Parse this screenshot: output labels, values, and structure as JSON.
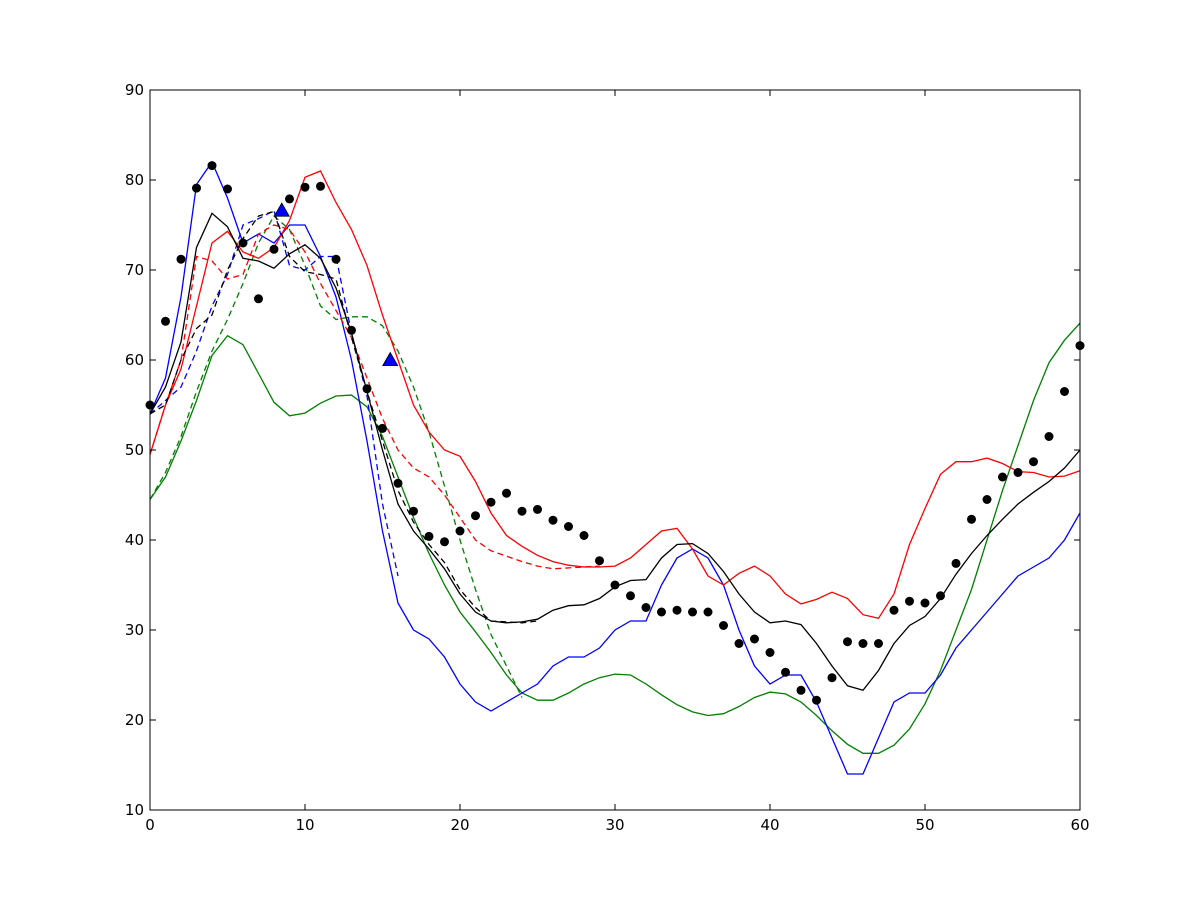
{
  "chart_data": {
    "type": "line",
    "title": "",
    "xlabel": "",
    "ylabel": "",
    "xlim": [
      0,
      60
    ],
    "ylim": [
      10,
      90
    ],
    "grid": false,
    "x_ticks": [
      "0",
      "10",
      "20",
      "30",
      "40",
      "50",
      "60"
    ],
    "y_ticks": [
      "10",
      "20",
      "30",
      "40",
      "50",
      "60",
      "70",
      "80",
      "90"
    ],
    "series": [
      {
        "name": "green-solid",
        "color": "#008000",
        "style": "solid",
        "x": [
          0,
          1,
          2,
          3,
          4,
          5,
          6,
          7,
          8,
          9,
          10,
          11,
          12,
          13,
          14,
          15,
          16,
          17,
          18,
          19,
          20,
          21,
          22,
          23,
          24,
          25,
          26,
          27,
          28,
          29,
          30,
          31,
          32,
          33,
          34,
          35,
          36,
          37,
          38,
          39,
          40,
          41,
          42,
          43,
          44,
          45,
          46,
          47,
          48,
          49,
          50,
          51,
          52,
          53,
          54,
          55,
          56,
          57,
          58,
          59,
          60
        ],
        "y": [
          44.5,
          47,
          51,
          55.5,
          60.5,
          62.7,
          61.7,
          58.5,
          55.3,
          53.8,
          54.1,
          55.2,
          56,
          56.1,
          54.8,
          51.5,
          47,
          42.5,
          38.5,
          35,
          32,
          29.8,
          27.5,
          25,
          23,
          22.2,
          22.2,
          23,
          24,
          24.7,
          25.1,
          25,
          24,
          22.8,
          21.7,
          20.9,
          20.5,
          20.7,
          21.5,
          22.5,
          23.1,
          22.9,
          22,
          20.5,
          18.8,
          17.3,
          16.3,
          16.3,
          17.2,
          19,
          21.8,
          25.5,
          30,
          34.5,
          40,
          45.5,
          50.5,
          55.5,
          59.7,
          62.2,
          64.1
        ]
      },
      {
        "name": "green-dashed",
        "color": "#008000",
        "style": "dashed",
        "x": [
          0,
          1,
          2,
          3,
          4,
          5,
          6,
          7,
          8,
          9,
          10,
          11,
          12,
          13,
          14,
          15,
          16,
          17,
          18,
          19,
          20,
          21,
          22,
          23,
          24
        ],
        "y": [
          44.5,
          47.5,
          51.5,
          56.5,
          61,
          64.5,
          68.5,
          73,
          76,
          74.5,
          70.5,
          66,
          64.5,
          64.8,
          64.8,
          63.8,
          61,
          57,
          52,
          46,
          40,
          34.5,
          29.5,
          26,
          22.5
        ]
      },
      {
        "name": "blue-solid",
        "color": "#0000ff",
        "style": "solid",
        "x": [
          0,
          1,
          2,
          3,
          4,
          5,
          6,
          7,
          8,
          9,
          10,
          11,
          12,
          13,
          14,
          15,
          16,
          17,
          18,
          19,
          20,
          21,
          22,
          23,
          24,
          25,
          26,
          27,
          28,
          29,
          30,
          31,
          32,
          33,
          34,
          35,
          36,
          37,
          38,
          39,
          40,
          41,
          42,
          43,
          44,
          45,
          46,
          47,
          48,
          49,
          50,
          51,
          52,
          53,
          54,
          55,
          56,
          57,
          58,
          59,
          60
        ],
        "y": [
          54,
          58,
          67,
          79.5,
          82,
          78,
          73,
          74,
          73,
          75,
          75,
          71.5,
          67,
          60,
          51,
          41,
          33,
          30,
          29,
          27,
          24,
          22,
          21,
          22,
          23,
          24,
          26,
          27,
          27,
          28,
          30,
          31,
          31,
          35,
          38,
          39,
          38,
          35,
          30,
          26,
          24,
          25,
          25,
          22,
          18,
          14,
          14,
          18,
          22,
          23,
          23,
          25,
          28,
          30,
          32,
          34,
          36,
          37,
          38,
          40,
          43
        ]
      },
      {
        "name": "blue-dashed",
        "color": "#0000ff",
        "style": "dashed",
        "x": [
          0,
          1,
          2,
          3,
          4,
          5,
          6,
          7,
          8,
          9,
          10,
          11,
          12,
          13,
          14,
          15,
          16
        ],
        "y": [
          54,
          55.5,
          57,
          61,
          66,
          69.5,
          75,
          75.7,
          76.6,
          70.5,
          70,
          71.5,
          71.5,
          63,
          56,
          44,
          36
        ]
      },
      {
        "name": "red-solid",
        "color": "#ff0000",
        "style": "solid",
        "x": [
          0,
          1,
          2,
          3,
          4,
          5,
          6,
          7,
          8,
          9,
          10,
          11,
          12,
          13,
          14,
          15,
          16,
          17,
          18,
          19,
          20,
          21,
          22,
          23,
          24,
          25,
          26,
          27,
          28,
          29,
          30,
          31,
          32,
          33,
          34,
          35,
          36,
          37,
          38,
          39,
          40,
          41,
          42,
          43,
          44,
          45,
          46,
          47,
          48,
          49,
          50,
          51,
          52,
          53,
          54,
          55,
          56,
          57,
          58,
          59,
          60
        ],
        "y": [
          49.5,
          55,
          59,
          66,
          73,
          74.3,
          72,
          71.3,
          72.5,
          75.5,
          80.3,
          81,
          77.5,
          74.5,
          70.5,
          65,
          60,
          55,
          52,
          50,
          49.3,
          46.5,
          43,
          40.5,
          39.3,
          38.3,
          37.6,
          37.2,
          37,
          37,
          37.1,
          38,
          39.5,
          41,
          41.3,
          39,
          36,
          35,
          36.3,
          37.1,
          36,
          34,
          32.9,
          33.4,
          34.2,
          33.5,
          31.7,
          31.3,
          34,
          39.5,
          43.5,
          47.3,
          48.7,
          48.7,
          49.1,
          48.5,
          47.6,
          47.5,
          47,
          47.1,
          47.7
        ]
      },
      {
        "name": "red-dashed",
        "color": "#ff0000",
        "style": "dashed",
        "x": [
          0,
          1,
          2,
          3,
          4,
          5,
          6,
          7,
          8,
          9,
          10,
          11,
          12,
          13,
          14,
          15,
          16,
          17,
          18,
          19,
          20,
          21,
          22,
          23,
          24,
          25,
          26,
          27,
          28,
          29
        ],
        "y": [
          49.5,
          55,
          60,
          71.5,
          71,
          69,
          69.5,
          74,
          75,
          74.5,
          72,
          68.5,
          65.5,
          62.5,
          58,
          53.5,
          50,
          48,
          47,
          45,
          42.5,
          40,
          38.8,
          38.2,
          37.6,
          37.1,
          36.8,
          36.9,
          37,
          37.1
        ]
      },
      {
        "name": "black-solid",
        "color": "#000000",
        "style": "solid",
        "x": [
          0,
          1,
          2,
          3,
          4,
          5,
          6,
          7,
          8,
          9,
          10,
          11,
          12,
          13,
          14,
          15,
          16,
          17,
          18,
          19,
          20,
          21,
          22,
          23,
          24,
          25,
          26,
          27,
          28,
          29,
          30,
          31,
          32,
          33,
          34,
          35,
          36,
          37,
          38,
          39,
          40,
          41,
          42,
          43,
          44,
          45,
          46,
          47,
          48,
          49,
          50,
          51,
          52,
          53,
          54,
          55,
          56,
          57,
          58,
          59,
          60
        ],
        "y": [
          54,
          57,
          62,
          72.5,
          76.3,
          74.8,
          71.3,
          71,
          70.2,
          71.8,
          72.8,
          71.3,
          68,
          63,
          56.5,
          50,
          44,
          41,
          39,
          36.8,
          34,
          32,
          31,
          30.8,
          30.9,
          31.2,
          32.2,
          32.7,
          32.8,
          33.5,
          34.8,
          35.5,
          35.6,
          38,
          39.5,
          39.6,
          38.5,
          36.5,
          34,
          32,
          30.8,
          31,
          30.6,
          28.5,
          26,
          23.8,
          23.3,
          25.5,
          28.5,
          30.5,
          31.5,
          33.5,
          36.2,
          38.5,
          40.5,
          42.3,
          44,
          45.3,
          46.5,
          48,
          50
        ]
      },
      {
        "name": "black-dashed",
        "color": "#000000",
        "style": "dashed",
        "x": [
          0,
          1,
          2,
          3,
          4,
          5,
          6,
          7,
          8,
          9,
          10,
          11,
          12,
          13,
          14,
          15,
          16,
          17,
          18,
          19,
          20,
          21,
          22,
          23,
          24,
          25
        ],
        "y": [
          54,
          55,
          60,
          63.5,
          65,
          70,
          73.5,
          76,
          76.5,
          71.5,
          69.8,
          69.5,
          69,
          62.5,
          56.5,
          51,
          45.5,
          42,
          39.5,
          37.5,
          34.5,
          32.5,
          31,
          30.9,
          30.8,
          31
        ]
      }
    ],
    "markers": [
      {
        "name": "black-dots",
        "color": "#000000",
        "shape": "circle",
        "x": [
          0,
          1,
          2,
          3,
          4,
          5,
          6,
          7,
          8,
          9,
          10,
          11,
          12,
          13,
          14,
          15,
          16,
          17,
          18,
          19,
          20,
          21,
          22,
          23,
          24,
          25,
          26,
          27,
          28,
          29,
          30,
          31,
          32,
          33,
          34,
          35,
          36,
          37,
          38,
          39,
          40,
          41,
          42,
          43,
          44,
          45,
          46,
          47,
          48,
          49,
          50,
          51,
          52,
          53,
          54,
          55,
          56,
          57,
          58,
          59,
          60
        ],
        "y": [
          55,
          64.3,
          71.2,
          79.1,
          81.6,
          79,
          73,
          66.8,
          72.3,
          77.9,
          79.2,
          79.3,
          71.2,
          63.3,
          56.8,
          52.4,
          46.3,
          43.2,
          40.4,
          39.8,
          41,
          42.7,
          44.2,
          45.2,
          43.2,
          43.4,
          42.2,
          41.5,
          40.5,
          37.7,
          35,
          33.8,
          32.5,
          32,
          32.2,
          32,
          32,
          30.5,
          28.5,
          29,
          27.5,
          25.3,
          23.3,
          22.2,
          24.7,
          28.7,
          28.5,
          28.5,
          32.2,
          33.2,
          33,
          33.8,
          37.4,
          42.3,
          44.5,
          47,
          47.5,
          48.7,
          51.5,
          56.5,
          61.6
        ]
      },
      {
        "name": "blue-triangles",
        "color": "#0000ff",
        "shape": "triangle",
        "x": [
          8.5,
          15.5
        ],
        "y": [
          76.6,
          60
        ]
      }
    ]
  }
}
